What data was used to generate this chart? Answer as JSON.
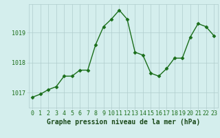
{
  "x": [
    0,
    1,
    2,
    3,
    4,
    5,
    6,
    7,
    8,
    9,
    10,
    11,
    12,
    13,
    14,
    15,
    16,
    17,
    18,
    19,
    20,
    21,
    22,
    23
  ],
  "y": [
    1016.85,
    1016.95,
    1017.1,
    1017.2,
    1017.55,
    1017.55,
    1017.75,
    1017.75,
    1018.6,
    1019.2,
    1019.45,
    1019.75,
    1019.45,
    1018.35,
    1018.25,
    1017.65,
    1017.55,
    1017.8,
    1018.15,
    1018.15,
    1018.85,
    1019.3,
    1019.2,
    1018.9
  ],
  "line_color": "#1a6e1a",
  "marker": "D",
  "marker_size": 2.5,
  "bg_color": "#d4eeed",
  "grid_color": "#b0cccc",
  "title": "Graphe pression niveau de la mer (hPa)",
  "title_color": "#1a4a1a",
  "yticks": [
    1017,
    1018,
    1019
  ],
  "ylim": [
    1016.5,
    1019.95
  ],
  "xlim": [
    -0.5,
    23.5
  ],
  "xlabel_fontsize": 7.0,
  "tick_fontsize": 6.0
}
